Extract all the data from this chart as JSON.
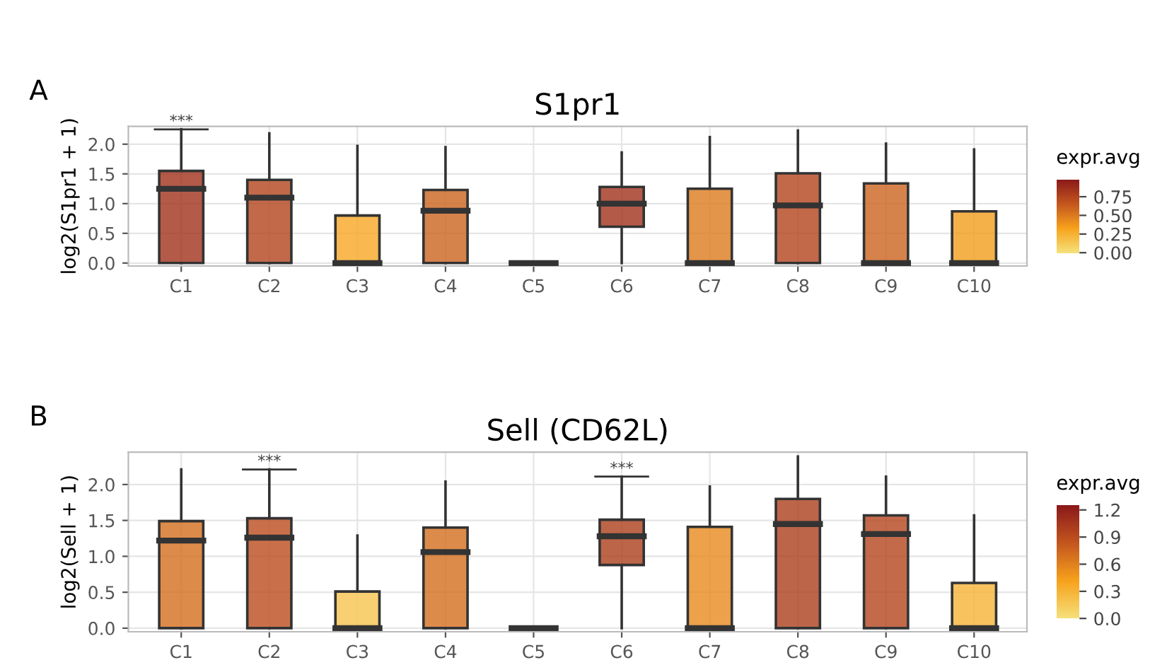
{
  "chart_data": [
    {
      "type": "box",
      "title": "S1pr1",
      "ylabel": "log2(S1pr1 + 1)",
      "clabel": "expr.avg",
      "grid": true,
      "categories": [
        "C1",
        "C2",
        "C3",
        "C4",
        "C5",
        "C6",
        "C7",
        "C8",
        "C9",
        "C10"
      ],
      "boxes": [
        {
          "low": 0,
          "q1": 0,
          "median": 1.25,
          "q3": 1.55,
          "high": 2.25
        },
        {
          "low": 0,
          "q1": 0,
          "median": 1.1,
          "q3": 1.4,
          "high": 2.18
        },
        {
          "low": 0,
          "q1": 0,
          "median": 0,
          "q3": 0.8,
          "high": 1.97
        },
        {
          "low": 0,
          "q1": 0,
          "median": 0.88,
          "q3": 1.23,
          "high": 1.95
        },
        {
          "low": 0,
          "q1": 0,
          "median": 0,
          "q3": 0,
          "high": 0
        },
        {
          "low": 0,
          "q1": 0.61,
          "median": 1.0,
          "q3": 1.28,
          "high": 1.86
        },
        {
          "low": 0,
          "q1": 0,
          "median": 0,
          "q3": 1.25,
          "high": 2.12
        },
        {
          "low": 0,
          "q1": 0,
          "median": 0.97,
          "q3": 1.51,
          "high": 2.23
        },
        {
          "low": 0,
          "q1": 0,
          "median": 0,
          "q3": 1.34,
          "high": 2.01
        },
        {
          "low": 0,
          "q1": 0,
          "median": 0,
          "q3": 0.87,
          "high": 1.91
        }
      ],
      "cvalues": [
        0.85,
        0.75,
        0.3,
        0.6,
        null,
        0.85,
        0.5,
        0.75,
        0.6,
        0.35
      ],
      "ylim": [
        -0.05,
        2.3
      ],
      "yticks": [
        {
          "value": 0,
          "label": "0.0"
        },
        {
          "value": 0.5,
          "label": "0.5"
        },
        {
          "value": 1,
          "label": "1.0"
        },
        {
          "value": 1.5,
          "label": "1.5"
        },
        {
          "value": 2,
          "label": "2.0"
        }
      ],
      "clim": [
        0,
        0.98
      ],
      "cticks": [
        {
          "value": 0,
          "label": "0.00"
        },
        {
          "value": 0.25,
          "label": "0.25"
        },
        {
          "value": 0.5,
          "label": "0.50"
        },
        {
          "value": 0.75,
          "label": "0.75"
        }
      ],
      "annotations": [
        "A",
        {
          "text": "***",
          "x": "C1",
          "y": 2.25
        }
      ]
    },
    {
      "type": "box",
      "title": "Sell (CD62L)",
      "ylabel": "log2(Sell + 1)",
      "clabel": "expr.avg",
      "grid": true,
      "categories": [
        "C1",
        "C2",
        "C3",
        "C4",
        "C5",
        "C6",
        "C7",
        "C8",
        "C9",
        "C10"
      ],
      "boxes": [
        {
          "low": 0,
          "q1": 0,
          "median": 1.22,
          "q3": 1.49,
          "high": 2.21
        },
        {
          "low": 0,
          "q1": 0,
          "median": 1.26,
          "q3": 1.53,
          "high": 2.21
        },
        {
          "low": 0,
          "q1": 0,
          "median": 0,
          "q3": 0.51,
          "high": 1.29
        },
        {
          "low": 0,
          "q1": 0,
          "median": 1.06,
          "q3": 1.4,
          "high": 2.04
        },
        {
          "low": 0,
          "q1": 0,
          "median": 0,
          "q3": 0,
          "high": 0
        },
        {
          "low": 0,
          "q1": 0.88,
          "median": 1.28,
          "q3": 1.51,
          "high": 2.11
        },
        {
          "low": 0,
          "q1": 0,
          "median": 0,
          "q3": 1.41,
          "high": 1.97
        },
        {
          "low": 0,
          "q1": 0,
          "median": 1.45,
          "q3": 1.8,
          "high": 2.39
        },
        {
          "low": 0,
          "q1": 0,
          "median": 1.31,
          "q3": 1.57,
          "high": 2.11
        },
        {
          "low": 0,
          "q1": 0,
          "median": 0,
          "q3": 0.63,
          "high": 1.57
        }
      ],
      "cvalues": [
        0.7,
        0.9,
        0.2,
        0.7,
        null,
        1.0,
        0.55,
        1.0,
        0.95,
        0.3
      ],
      "ylim": [
        -0.05,
        2.45
      ],
      "yticks": [
        {
          "value": 0,
          "label": "0.0"
        },
        {
          "value": 0.5,
          "label": "0.5"
        },
        {
          "value": 1,
          "label": "1.0"
        },
        {
          "value": 1.5,
          "label": "1.5"
        },
        {
          "value": 2,
          "label": "2.0"
        }
      ],
      "clim": [
        0,
        1.25
      ],
      "cticks": [
        {
          "value": 0,
          "label": "0.0"
        },
        {
          "value": 0.3,
          "label": "0.3"
        },
        {
          "value": 0.6,
          "label": "0.6"
        },
        {
          "value": 0.9,
          "label": "0.9"
        },
        {
          "value": 1.2,
          "label": "1.2"
        }
      ],
      "annotations": [
        "B",
        {
          "text": "***",
          "x": "C2",
          "y": 2.21
        },
        {
          "text": "***",
          "x": "C6",
          "y": 2.11
        }
      ]
    }
  ]
}
